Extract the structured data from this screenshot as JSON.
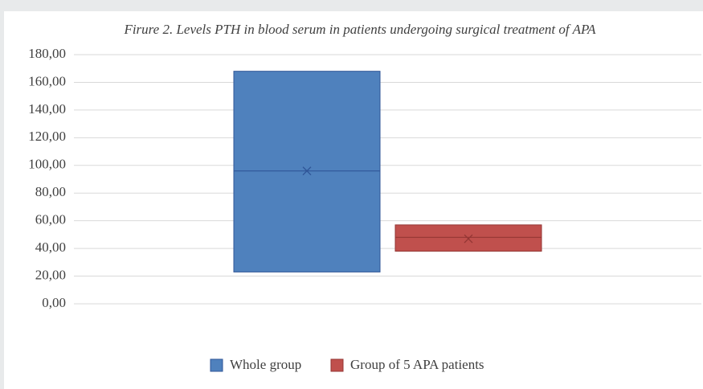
{
  "chart_data": {
    "type": "box",
    "title": "Firure 2. Levels PTH in blood serum in patients undergoing surgical treatment of APA",
    "ylim": [
      0,
      180
    ],
    "yticks": [
      {
        "value": 0,
        "label": "0,00"
      },
      {
        "value": 20,
        "label": "20,00"
      },
      {
        "value": 40,
        "label": "40,00"
      },
      {
        "value": 60,
        "label": "60,00"
      },
      {
        "value": 80,
        "label": "80,00"
      },
      {
        "value": 100,
        "label": "100,00"
      },
      {
        "value": 120,
        "label": "120,00"
      },
      {
        "value": 140,
        "label": "140,00"
      },
      {
        "value": 160,
        "label": "160,00"
      },
      {
        "value": 180,
        "label": "180,00"
      }
    ],
    "grid": true,
    "legend": "bottom",
    "series": [
      {
        "name": "Whole group",
        "color": "#4f81bd",
        "q1": 23,
        "median": 96,
        "q3": 168,
        "mean": 96
      },
      {
        "name": "Group of 5 APA patients",
        "color": "#c0504d",
        "q1": 38,
        "median": 48,
        "q3": 57,
        "mean": 47
      }
    ]
  }
}
